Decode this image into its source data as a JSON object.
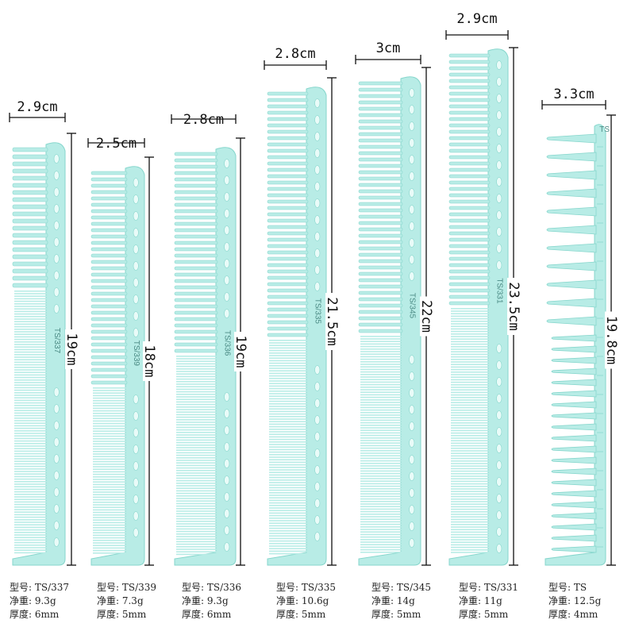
{
  "combs": [
    {
      "width_label": "2.9cm",
      "length_label": "19cm",
      "model_mark": "TS/337",
      "specs": {
        "model": "型号: TS/337",
        "net_weight": "净重: 9.3g",
        "thickness": "厚度: 6mm"
      }
    },
    {
      "width_label": "2.5cm",
      "length_label": "18cm",
      "model_mark": "TS/339",
      "specs": {
        "model": "型号: TS/339",
        "net_weight": "净重: 7.3g",
        "thickness": "厚度: 5mm"
      }
    },
    {
      "width_label": "2.8cm",
      "length_label": "19cm",
      "model_mark": "TS/336",
      "specs": {
        "model": "型号: TS/336",
        "net_weight": "净重: 9.3g",
        "thickness": "厚度: 6mm"
      }
    },
    {
      "width_label": "2.8cm",
      "length_label": "21.5cm",
      "model_mark": "TS/335",
      "specs": {
        "model": "型号: TS/335",
        "net_weight": "净重: 10.6g",
        "thickness": "厚度: 5mm"
      }
    },
    {
      "width_label": "3cm",
      "length_label": "22cm",
      "model_mark": "TS/345",
      "specs": {
        "model": "型号: TS/345",
        "net_weight": "净重: 14g",
        "thickness": "厚度: 5mm"
      }
    },
    {
      "width_label": "2.9cm",
      "length_label": "23.5cm",
      "model_mark": "TS/331",
      "specs": {
        "model": "型号: TS/331",
        "net_weight": "净重: 11g",
        "thickness": "厚度: 5mm"
      }
    },
    {
      "width_label": "3.3cm",
      "length_label": "19.8cm",
      "model_mark": "TS",
      "specs": {
        "model": "型号: TS",
        "net_weight": "净重: 12.5g",
        "thickness": "厚度: 4mm"
      }
    }
  ],
  "colors": {
    "comb": "#b8ece6",
    "comb_edge": "#86d6cc",
    "hole": "#e9fbf8",
    "dimension": "#111111",
    "mark": "#4a8a84"
  }
}
